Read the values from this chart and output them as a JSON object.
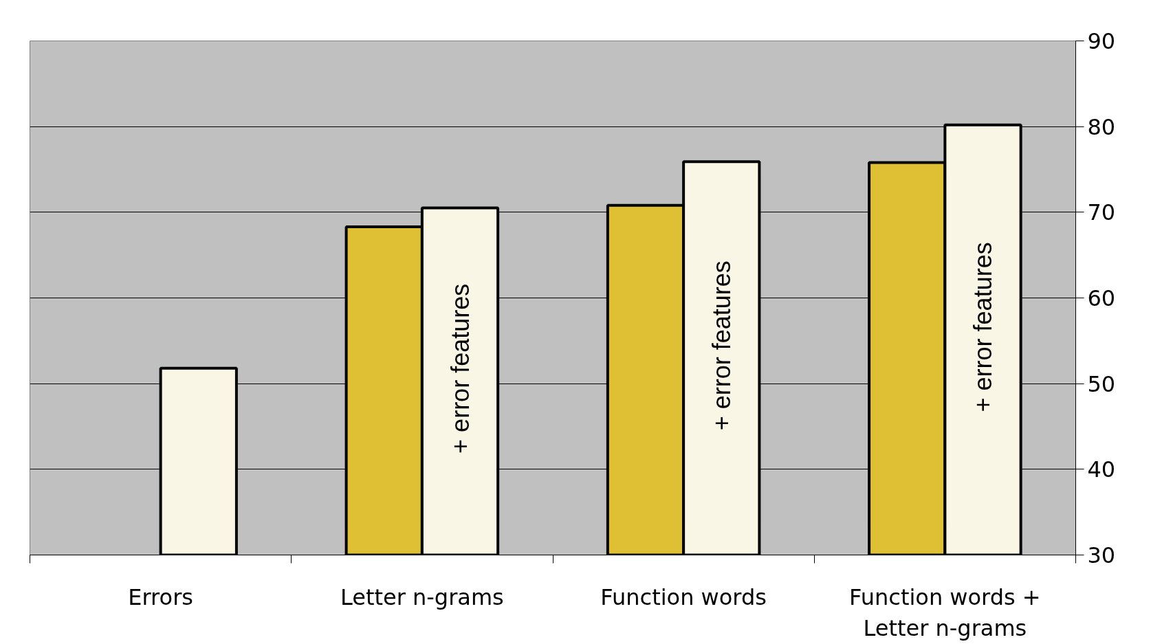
{
  "chart_data": {
    "type": "bar",
    "categories": [
      "Errors",
      "Letter n-grams",
      "Function words",
      "Function words +\nLetter n-grams"
    ],
    "series": [
      {
        "color": "#dfbf33",
        "values": [
          null,
          68.3,
          70.8,
          75.8
        ]
      },
      {
        "name": "+ error features",
        "color": "#faf6e6",
        "values": [
          51.8,
          70.5,
          75.9,
          80.2
        ]
      }
    ],
    "ylim": [
      30,
      90
    ],
    "yticks": [
      30,
      40,
      50,
      60,
      70,
      80,
      90
    ],
    "grid": "y"
  }
}
